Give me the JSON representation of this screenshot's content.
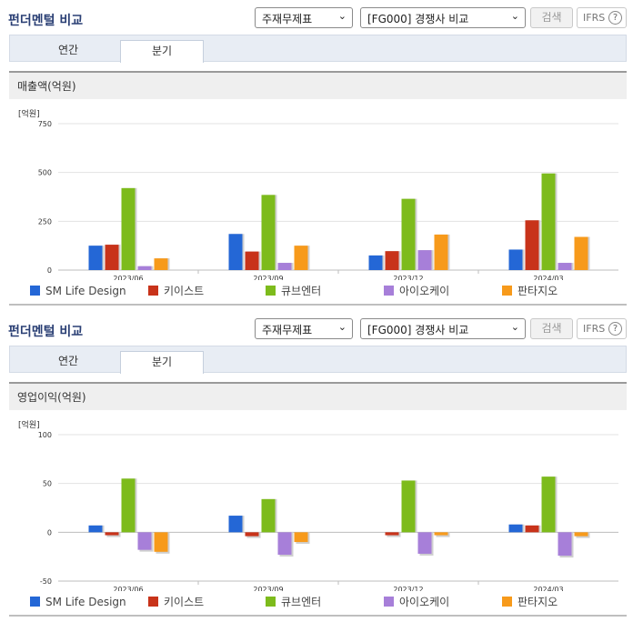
{
  "panels": [
    {
      "title": "펀더멘털 비교",
      "select1": "주재무제표",
      "select2": "[FG000] 경쟁사 비교",
      "search_label": "검색",
      "ifrs_label": "IFRS",
      "ifrs_help": "?",
      "tabs": [
        "연간",
        "분기"
      ],
      "active_tab": "분기",
      "section_title": "매출액(억원)",
      "unit": "[억원]"
    },
    {
      "title": "펀더멘털 비교",
      "select1": "주재무제표",
      "select2": "[FG000] 경쟁사 비교",
      "search_label": "검색",
      "ifrs_label": "IFRS",
      "ifrs_help": "?",
      "tabs": [
        "연간",
        "분기"
      ],
      "active_tab": "분기",
      "section_title": "영업이익(억원)",
      "unit": "[억원]"
    }
  ],
  "icons": {
    "dropdown": "chevron-down-icon",
    "help": "help-circle-icon"
  },
  "colors": {
    "SM Life Design": "#2467d6",
    "키이스트": "#c8331a",
    "큐브엔터": "#7dbb1c",
    "아이오케이": "#a77fd9",
    "판타지오": "#f79a1b"
  },
  "chart_data": [
    {
      "type": "bar",
      "title": "매출액(억원)",
      "ylabel": "[억원]",
      "categories": [
        "2023/06",
        "2023/09",
        "2023/12",
        "2024/03"
      ],
      "ylim": [
        0,
        750
      ],
      "yticks": [
        "750",
        "500",
        "250",
        "0"
      ],
      "legend_position": "bottom",
      "series": [
        {
          "name": "SM Life Design",
          "values": [
            125,
            185,
            75,
            105
          ]
        },
        {
          "name": "키이스트",
          "values": [
            130,
            95,
            97,
            255
          ]
        },
        {
          "name": "큐브엔터",
          "values": [
            420,
            385,
            365,
            495
          ]
        },
        {
          "name": "아이오케이",
          "values": [
            20,
            37,
            102,
            37
          ]
        },
        {
          "name": "판타지오",
          "values": [
            60,
            125,
            182,
            170
          ]
        }
      ]
    },
    {
      "type": "bar",
      "title": "영업이익(억원)",
      "ylabel": "[억원]",
      "categories": [
        "2023/06",
        "2023/09",
        "2023/12",
        "2024/03"
      ],
      "ylim": [
        -50,
        100
      ],
      "yticks": [
        "100",
        "50",
        "0",
        "-50"
      ],
      "legend_position": "bottom",
      "series": [
        {
          "name": "SM Life Design",
          "values": [
            7,
            17,
            0,
            8
          ]
        },
        {
          "name": "키이스트",
          "values": [
            -3,
            -4,
            -3,
            7
          ]
        },
        {
          "name": "큐브엔터",
          "values": [
            55,
            34,
            53,
            57
          ]
        },
        {
          "name": "아이오케이",
          "values": [
            -18,
            -23,
            -22,
            -24
          ]
        },
        {
          "name": "판타지오",
          "values": [
            -20,
            -10,
            -3,
            -4
          ]
        }
      ]
    }
  ]
}
